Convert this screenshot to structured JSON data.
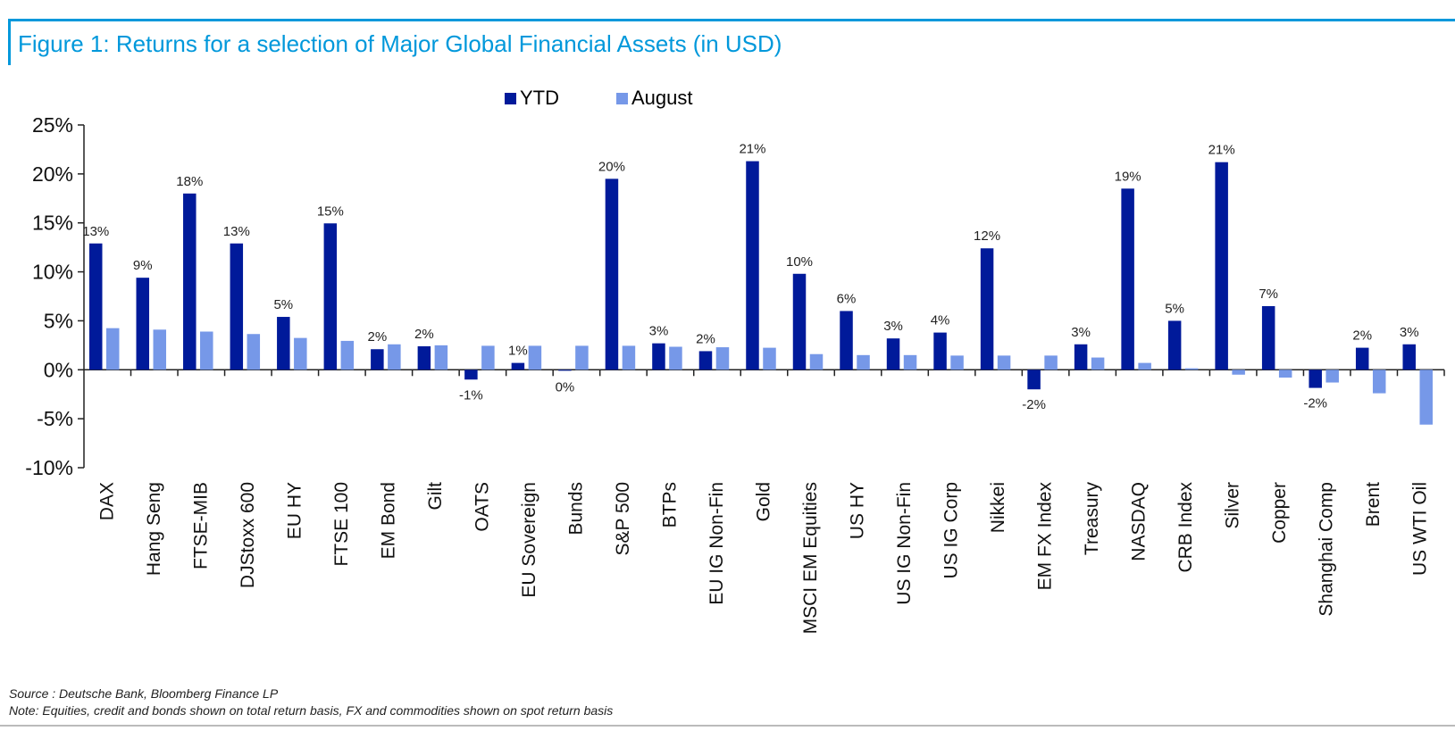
{
  "chart_data": {
    "type": "bar",
    "title": "Figure 1: Returns for a selection of Major Global Financial Assets (in USD)",
    "xlabel": "",
    "ylabel": "",
    "ylim": [
      -10,
      25
    ],
    "yticks": [
      -10,
      -5,
      0,
      5,
      10,
      15,
      20,
      25
    ],
    "ytick_labels": [
      "-10%",
      "-5%",
      "0%",
      "5%",
      "10%",
      "15%",
      "20%",
      "25%"
    ],
    "legend_position": "top-center",
    "grid": false,
    "categories": [
      "DAX",
      "Hang Seng",
      "FTSE-MIB",
      "DJStoxx 600",
      "EU HY",
      "FTSE 100",
      "EM Bond",
      "Gilt",
      "OATS",
      "EU Sovereign",
      "Bunds",
      "S&P 500",
      "BTPs",
      "EU IG Non-Fin",
      "Gold",
      "MSCI EM Equities",
      "US HY",
      "US IG Non-Fin",
      "US IG Corp",
      "Nikkei",
      "EM FX Index",
      "Treasury",
      "NASDAQ",
      "CRB Index",
      "Silver",
      "Copper",
      "Shanghai Comp",
      "Brent",
      "US WTI Oil"
    ],
    "series": [
      {
        "name": "YTD",
        "color": "#001a9a",
        "values": [
          12.9,
          9.4,
          18.0,
          12.9,
          5.4,
          14.95,
          2.1,
          2.4,
          -1.0,
          0.7,
          -0.1,
          19.5,
          2.7,
          1.9,
          21.3,
          9.8,
          6.0,
          3.2,
          3.8,
          12.4,
          -2.0,
          2.6,
          18.5,
          5.0,
          21.2,
          6.5,
          -1.85,
          2.25,
          2.6
        ],
        "data_labels": [
          "13%",
          "9%",
          "18%",
          "13%",
          "5%",
          "15%",
          "2%",
          "2%",
          "-1%",
          "1%",
          "0%",
          "20%",
          "3%",
          "2%",
          "21%",
          "10%",
          "6%",
          "3%",
          "4%",
          "12%",
          "-2%",
          "3%",
          "19%",
          "5%",
          "21%",
          "7%",
          "-2%",
          "2%",
          "3%"
        ]
      },
      {
        "name": "August",
        "color": "#7698e8",
        "values": [
          4.25,
          4.1,
          3.9,
          3.65,
          3.25,
          2.95,
          2.6,
          2.5,
          2.45,
          2.45,
          2.45,
          2.45,
          2.35,
          2.3,
          2.25,
          1.6,
          1.5,
          1.5,
          1.45,
          1.45,
          1.45,
          1.25,
          0.7,
          0.15,
          -0.5,
          -0.8,
          -1.3,
          -2.4,
          -5.6
        ]
      }
    ]
  },
  "header": {
    "title": "Figure 1: Returns for a selection of Major Global Financial Assets (in USD)"
  },
  "legend": [
    {
      "label": "YTD",
      "color": "#001a9a"
    },
    {
      "label": "August",
      "color": "#7698e8"
    }
  ],
  "footer": {
    "source": "Source : Deutsche Bank, Bloomberg Finance LP",
    "note": "Note: Equities, credit and bonds shown on total return basis, FX and commodities shown on spot return basis"
  }
}
